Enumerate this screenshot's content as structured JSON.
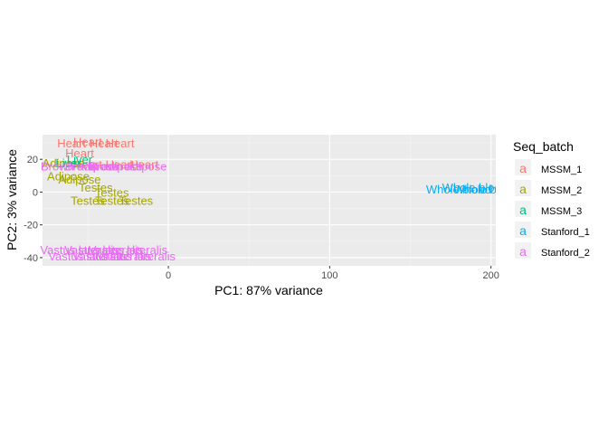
{
  "chart_data": {
    "type": "scatter",
    "xlabel": "PC1: 87% variance",
    "ylabel": "PC2: 3% variance",
    "xlim": [
      -78,
      203
    ],
    "ylim": [
      -45,
      35
    ],
    "xticks": [
      0,
      100,
      200
    ],
    "yticks": [
      -40,
      -20,
      0,
      20
    ],
    "grid": true,
    "legend": {
      "title": "Seq_batch",
      "placement": "right",
      "key_glyph": "a"
    },
    "series": [
      {
        "name": "MSSM_1",
        "color": "#F8766D",
        "points": [
          {
            "x": -60,
            "y": 30,
            "label": "Heart"
          },
          {
            "x": -50,
            "y": 31,
            "label": "Heart"
          },
          {
            "x": -40,
            "y": 30,
            "label": "Heart"
          },
          {
            "x": -30,
            "y": 30,
            "label": "Heart"
          },
          {
            "x": -55,
            "y": 24,
            "label": "Heart"
          },
          {
            "x": -50,
            "y": 17,
            "label": "Heart"
          },
          {
            "x": -30,
            "y": 17,
            "label": "Heart"
          },
          {
            "x": -15,
            "y": 17,
            "label": "Heart"
          }
        ]
      },
      {
        "name": "MSSM_2",
        "color": "#A3A500",
        "points": [
          {
            "x": -65,
            "y": 18,
            "label": "Adipose"
          },
          {
            "x": -62,
            "y": 10,
            "label": "Adipose"
          },
          {
            "x": -55,
            "y": 8,
            "label": "Adipose"
          },
          {
            "x": -45,
            "y": 3,
            "label": "Testes"
          },
          {
            "x": -35,
            "y": 0,
            "label": "Testes"
          },
          {
            "x": -50,
            "y": -5,
            "label": "Testes"
          },
          {
            "x": -35,
            "y": -5,
            "label": "Testes"
          },
          {
            "x": -20,
            "y": -5,
            "label": "Testes"
          }
        ]
      },
      {
        "name": "MSSM_3",
        "color": "#00BF7D",
        "points": [
          {
            "x": -62,
            "y": 18,
            "label": "Liver"
          },
          {
            "x": -55,
            "y": 20,
            "label": "Liver"
          }
        ]
      },
      {
        "name": "Stanford_1",
        "color": "#00B0F6",
        "points": [
          {
            "x": 180,
            "y": 2,
            "label": "Whole blood"
          },
          {
            "x": 190,
            "y": 3,
            "label": "Whole blood"
          },
          {
            "x": 197,
            "y": 2,
            "label": "Whole blood"
          }
        ]
      },
      {
        "name": "Stanford_2",
        "color": "#E76BF3",
        "points": [
          {
            "x": -55,
            "y": 16,
            "label": "Brown adipose"
          },
          {
            "x": -40,
            "y": 16,
            "label": "Brown adipose"
          },
          {
            "x": -25,
            "y": 16,
            "label": "Brown adipose"
          },
          {
            "x": -55,
            "y": -35,
            "label": "Vastus lateralis"
          },
          {
            "x": -40,
            "y": -35,
            "label": "Vastus lateralis"
          },
          {
            "x": -25,
            "y": -35,
            "label": "Vastus lateralis"
          },
          {
            "x": -50,
            "y": -39,
            "label": "Vastus lateralis"
          },
          {
            "x": -35,
            "y": -39,
            "label": "Vastus lateralis"
          },
          {
            "x": -20,
            "y": -39,
            "label": "Vastus lateralis"
          }
        ]
      }
    ]
  }
}
